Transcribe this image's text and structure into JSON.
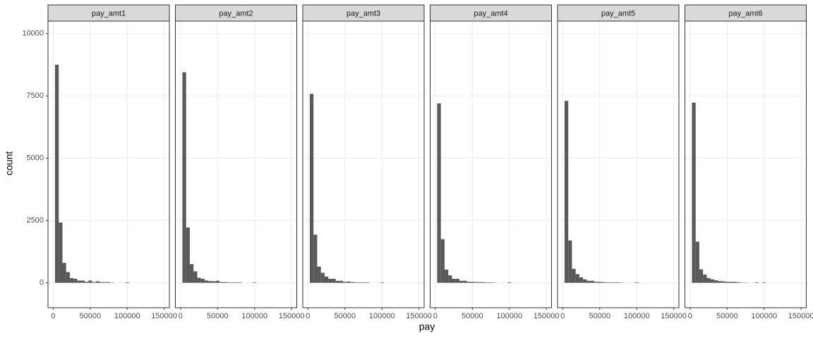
{
  "chart_data": {
    "type": "histogram",
    "xlabel": "pay",
    "ylabel": "count",
    "color": "#595959",
    "grid": true,
    "xlim": [
      -7000,
      157000
    ],
    "xticks": [
      0,
      50000,
      100000,
      150000
    ],
    "ylim": [
      -1000,
      10500
    ],
    "yticks": [
      0,
      2500,
      5000,
      7500,
      10000
    ],
    "bins": [
      2500,
      7500,
      12500,
      17500,
      22500,
      27500,
      32500,
      37500,
      42500,
      47500,
      52500,
      57500,
      62500,
      67500,
      72500,
      77500,
      82500,
      87500,
      92500,
      97500,
      102500
    ],
    "facets": [
      {
        "title": "pay_amt1",
        "counts": [
          8750,
          2420,
          800,
          430,
          190,
          160,
          90,
          90,
          40,
          90,
          30,
          60,
          30,
          30,
          30,
          10,
          0,
          0,
          0,
          20
        ]
      },
      {
        "title": "pay_amt2",
        "counts": [
          8450,
          2220,
          750,
          460,
          200,
          160,
          90,
          70,
          60,
          80,
          30,
          30,
          20,
          20,
          20,
          20,
          0,
          0,
          0,
          20
        ]
      },
      {
        "title": "pay_amt3",
        "counts": [
          7580,
          1930,
          650,
          400,
          250,
          160,
          160,
          80,
          80,
          40,
          50,
          30,
          20,
          20,
          20,
          20,
          0,
          0,
          0,
          20
        ]
      },
      {
        "title": "pay_amt4",
        "counts": [
          7200,
          1750,
          530,
          300,
          160,
          160,
          80,
          80,
          40,
          40,
          30,
          30,
          30,
          20,
          20,
          10,
          0,
          0,
          0,
          20
        ]
      },
      {
        "title": "pay_amt5",
        "counts": [
          7300,
          1700,
          560,
          350,
          220,
          140,
          80,
          80,
          40,
          40,
          30,
          20,
          20,
          20,
          20,
          10,
          0,
          0,
          0,
          20
        ]
      },
      {
        "title": "pay_amt6",
        "counts": [
          7230,
          1650,
          540,
          330,
          190,
          140,
          100,
          70,
          60,
          40,
          40,
          40,
          30,
          10,
          10,
          0,
          0,
          20,
          0,
          20
        ]
      }
    ]
  }
}
